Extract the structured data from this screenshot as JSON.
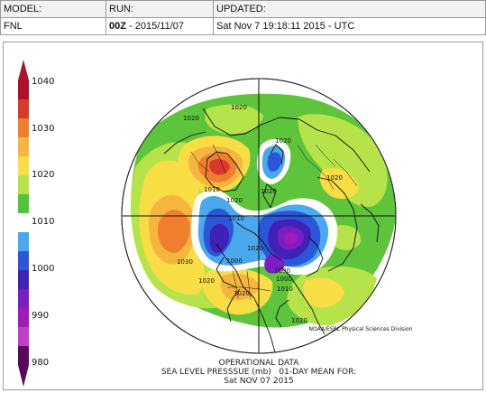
{
  "header": {
    "model_label": "MODEL:",
    "run_label": "RUN:",
    "updated_label": "UPDATED:",
    "model_value": "FNL",
    "run_strong": "00Z",
    "run_rest": " - 2015/11/07",
    "updated_value": "Sat Nov 7 19:18:11 2015 - UTC"
  },
  "colorbar": {
    "ticks": [
      "1040",
      "1030",
      "1020",
      "1010",
      "1000",
      "990",
      "980"
    ],
    "colors": [
      "#b0102a",
      "#d8392b",
      "#f07f2d",
      "#f6b63e",
      "#f9dd45",
      "#b7e34a",
      "#53c43a",
      "#ffffff",
      "#4aa8ec",
      "#2b56d8",
      "#3f22b5",
      "#7b1cc4",
      "#a21ab8",
      "#c43fc9",
      "#5a0a5a"
    ]
  },
  "map": {
    "contour_labels": [
      "1020",
      "1020",
      "1020",
      "1020",
      "1010",
      "1020",
      "1020",
      "1010",
      "1030",
      "1020",
      "1020",
      "1000",
      "1000",
      "1000",
      "1010",
      "1020",
      "1020"
    ],
    "colors": {
      "green": "#5dc43b",
      "lime": "#b7e34a",
      "yellow": "#f9dd45",
      "gold": "#f6b63e",
      "orange": "#f07f2d",
      "red": "#d8392b",
      "white": "#ffffff",
      "lightblue": "#4aa8ec",
      "blue": "#2b56d8",
      "indigo": "#3f22b5",
      "purple": "#7b1cc4",
      "magenta": "#a21ab8"
    }
  },
  "credit": "NOAA/ESRL Physical Sciences Division",
  "footer": {
    "line1": "OPERATIONAL DATA",
    "line2": "SEA LEVEL PRESSSUE (mb)   01-DAY MEAN FOR:",
    "line3": "Sat NOV 07 2015"
  }
}
